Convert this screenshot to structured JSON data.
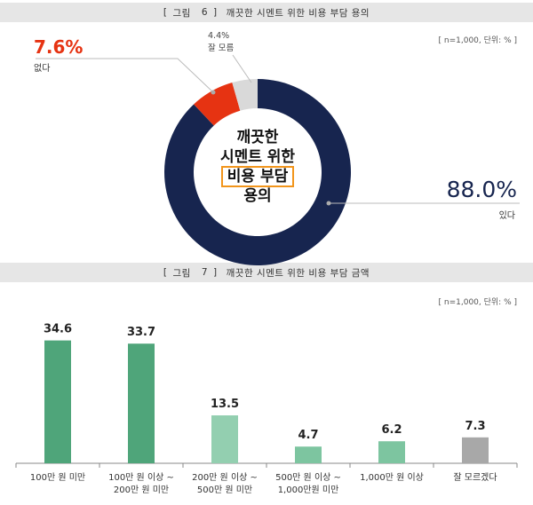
{
  "figure6": {
    "bracket_open": "[",
    "label": "그림",
    "number": "6",
    "bracket_close": "]",
    "title": "깨끗한 시멘트 위한 비용 부담 용의",
    "unit": "[ n=1,000, 단위: % ]",
    "center_lines": [
      "깨끗한",
      "시멘트 위한",
      "비용 부담",
      "용의"
    ],
    "colors": {
      "yes": "#17254f",
      "no": "#e63312",
      "dk": "#d9d9d9",
      "highlight_box": "#f2951b"
    }
  },
  "figure7": {
    "bracket_open": "[",
    "label": "그림",
    "number": "7",
    "bracket_close": "]",
    "title": "깨끗한 시멘트 위한 비용 부담 금액",
    "unit": "[ n=1,000, 단위: % ]"
  },
  "chart_data": [
    {
      "type": "pie",
      "title": "깨끗한 시멘트 위한 비용 부담 용의",
      "categories": [
        "있다",
        "없다",
        "잘 모름"
      ],
      "values": [
        88.0,
        7.6,
        4.4
      ],
      "value_labels": [
        "88.0%",
        "7.6%",
        "4.4%"
      ],
      "donut": true
    },
    {
      "type": "bar",
      "title": "깨끗한 시멘트 위한 비용 부담 금액",
      "categories": [
        [
          "100만 원 미만"
        ],
        [
          "100만 원 이상 ~",
          "200만 원 미만"
        ],
        [
          "200만 원 이상 ~",
          "500만 원 미만"
        ],
        [
          "500만 원 이상 ~",
          "1,000만원 미만"
        ],
        [
          "1,000만 원 이상"
        ],
        [
          "잘 모르겠다"
        ]
      ],
      "values": [
        34.6,
        33.7,
        13.5,
        4.7,
        6.2,
        7.3
      ],
      "value_labels": [
        "34.6",
        "33.7",
        "13.5",
        "4.7",
        "6.2",
        "7.3"
      ],
      "bar_colors": [
        "#4fa57a",
        "#4fa57a",
        "#93cfb0",
        "#7dc5a0",
        "#7dc5a0",
        "#a8a8a8"
      ],
      "ylim": [
        0,
        40
      ],
      "grid": false
    }
  ]
}
